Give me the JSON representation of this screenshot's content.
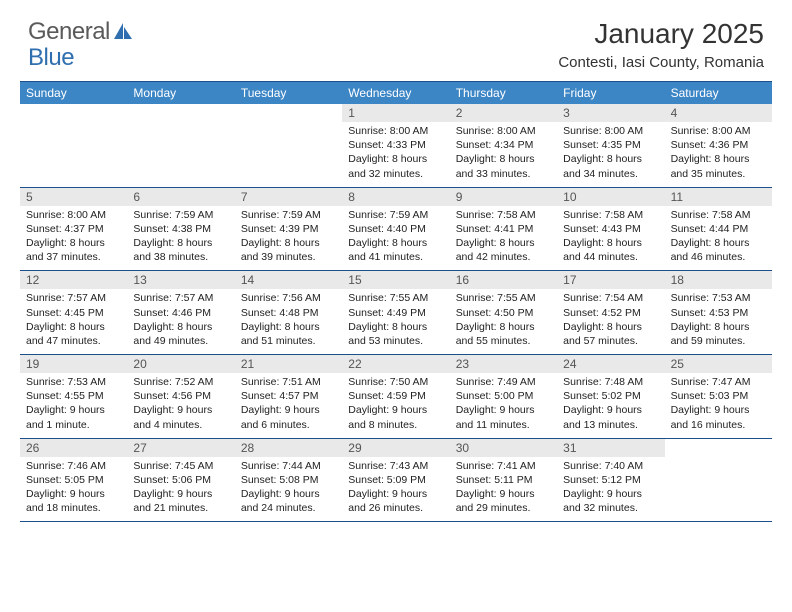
{
  "logo": {
    "text1": "General",
    "text2": "Blue"
  },
  "header": {
    "title": "January 2025",
    "location": "Contesti, Iasi County, Romania"
  },
  "colors": {
    "header_bar": "#3d86c6",
    "header_border": "#1d4f8b",
    "daynum_bg": "#e9e9e9",
    "logo_gray": "#5a5a5a",
    "logo_blue": "#2f6fb0"
  },
  "daynames": [
    "Sunday",
    "Monday",
    "Tuesday",
    "Wednesday",
    "Thursday",
    "Friday",
    "Saturday"
  ],
  "weeks": [
    [
      {
        "empty": true
      },
      {
        "empty": true
      },
      {
        "empty": true
      },
      {
        "day": "1",
        "sunrise": "8:00 AM",
        "sunset": "4:33 PM",
        "daylight1": "Daylight: 8 hours",
        "daylight2": "and 32 minutes."
      },
      {
        "day": "2",
        "sunrise": "8:00 AM",
        "sunset": "4:34 PM",
        "daylight1": "Daylight: 8 hours",
        "daylight2": "and 33 minutes."
      },
      {
        "day": "3",
        "sunrise": "8:00 AM",
        "sunset": "4:35 PM",
        "daylight1": "Daylight: 8 hours",
        "daylight2": "and 34 minutes."
      },
      {
        "day": "4",
        "sunrise": "8:00 AM",
        "sunset": "4:36 PM",
        "daylight1": "Daylight: 8 hours",
        "daylight2": "and 35 minutes."
      }
    ],
    [
      {
        "day": "5",
        "sunrise": "8:00 AM",
        "sunset": "4:37 PM",
        "daylight1": "Daylight: 8 hours",
        "daylight2": "and 37 minutes."
      },
      {
        "day": "6",
        "sunrise": "7:59 AM",
        "sunset": "4:38 PM",
        "daylight1": "Daylight: 8 hours",
        "daylight2": "and 38 minutes."
      },
      {
        "day": "7",
        "sunrise": "7:59 AM",
        "sunset": "4:39 PM",
        "daylight1": "Daylight: 8 hours",
        "daylight2": "and 39 minutes."
      },
      {
        "day": "8",
        "sunrise": "7:59 AM",
        "sunset": "4:40 PM",
        "daylight1": "Daylight: 8 hours",
        "daylight2": "and 41 minutes."
      },
      {
        "day": "9",
        "sunrise": "7:58 AM",
        "sunset": "4:41 PM",
        "daylight1": "Daylight: 8 hours",
        "daylight2": "and 42 minutes."
      },
      {
        "day": "10",
        "sunrise": "7:58 AM",
        "sunset": "4:43 PM",
        "daylight1": "Daylight: 8 hours",
        "daylight2": "and 44 minutes."
      },
      {
        "day": "11",
        "sunrise": "7:58 AM",
        "sunset": "4:44 PM",
        "daylight1": "Daylight: 8 hours",
        "daylight2": "and 46 minutes."
      }
    ],
    [
      {
        "day": "12",
        "sunrise": "7:57 AM",
        "sunset": "4:45 PM",
        "daylight1": "Daylight: 8 hours",
        "daylight2": "and 47 minutes."
      },
      {
        "day": "13",
        "sunrise": "7:57 AM",
        "sunset": "4:46 PM",
        "daylight1": "Daylight: 8 hours",
        "daylight2": "and 49 minutes."
      },
      {
        "day": "14",
        "sunrise": "7:56 AM",
        "sunset": "4:48 PM",
        "daylight1": "Daylight: 8 hours",
        "daylight2": "and 51 minutes."
      },
      {
        "day": "15",
        "sunrise": "7:55 AM",
        "sunset": "4:49 PM",
        "daylight1": "Daylight: 8 hours",
        "daylight2": "and 53 minutes."
      },
      {
        "day": "16",
        "sunrise": "7:55 AM",
        "sunset": "4:50 PM",
        "daylight1": "Daylight: 8 hours",
        "daylight2": "and 55 minutes."
      },
      {
        "day": "17",
        "sunrise": "7:54 AM",
        "sunset": "4:52 PM",
        "daylight1": "Daylight: 8 hours",
        "daylight2": "and 57 minutes."
      },
      {
        "day": "18",
        "sunrise": "7:53 AM",
        "sunset": "4:53 PM",
        "daylight1": "Daylight: 8 hours",
        "daylight2": "and 59 minutes."
      }
    ],
    [
      {
        "day": "19",
        "sunrise": "7:53 AM",
        "sunset": "4:55 PM",
        "daylight1": "Daylight: 9 hours",
        "daylight2": "and 1 minute."
      },
      {
        "day": "20",
        "sunrise": "7:52 AM",
        "sunset": "4:56 PM",
        "daylight1": "Daylight: 9 hours",
        "daylight2": "and 4 minutes."
      },
      {
        "day": "21",
        "sunrise": "7:51 AM",
        "sunset": "4:57 PM",
        "daylight1": "Daylight: 9 hours",
        "daylight2": "and 6 minutes."
      },
      {
        "day": "22",
        "sunrise": "7:50 AM",
        "sunset": "4:59 PM",
        "daylight1": "Daylight: 9 hours",
        "daylight2": "and 8 minutes."
      },
      {
        "day": "23",
        "sunrise": "7:49 AM",
        "sunset": "5:00 PM",
        "daylight1": "Daylight: 9 hours",
        "daylight2": "and 11 minutes."
      },
      {
        "day": "24",
        "sunrise": "7:48 AM",
        "sunset": "5:02 PM",
        "daylight1": "Daylight: 9 hours",
        "daylight2": "and 13 minutes."
      },
      {
        "day": "25",
        "sunrise": "7:47 AM",
        "sunset": "5:03 PM",
        "daylight1": "Daylight: 9 hours",
        "daylight2": "and 16 minutes."
      }
    ],
    [
      {
        "day": "26",
        "sunrise": "7:46 AM",
        "sunset": "5:05 PM",
        "daylight1": "Daylight: 9 hours",
        "daylight2": "and 18 minutes."
      },
      {
        "day": "27",
        "sunrise": "7:45 AM",
        "sunset": "5:06 PM",
        "daylight1": "Daylight: 9 hours",
        "daylight2": "and 21 minutes."
      },
      {
        "day": "28",
        "sunrise": "7:44 AM",
        "sunset": "5:08 PM",
        "daylight1": "Daylight: 9 hours",
        "daylight2": "and 24 minutes."
      },
      {
        "day": "29",
        "sunrise": "7:43 AM",
        "sunset": "5:09 PM",
        "daylight1": "Daylight: 9 hours",
        "daylight2": "and 26 minutes."
      },
      {
        "day": "30",
        "sunrise": "7:41 AM",
        "sunset": "5:11 PM",
        "daylight1": "Daylight: 9 hours",
        "daylight2": "and 29 minutes."
      },
      {
        "day": "31",
        "sunrise": "7:40 AM",
        "sunset": "5:12 PM",
        "daylight1": "Daylight: 9 hours",
        "daylight2": "and 32 minutes."
      },
      {
        "empty": true
      }
    ]
  ]
}
